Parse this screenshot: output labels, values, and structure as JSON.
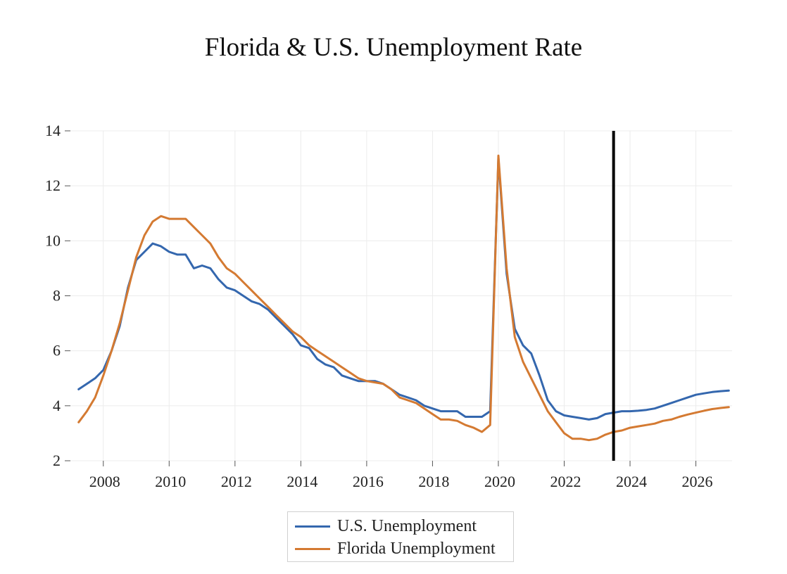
{
  "chart_data": {
    "type": "line",
    "title": "Florida & U.S. Unemployment Rate",
    "xlabel": "",
    "ylabel": "",
    "xlim": [
      2007.0,
      2027.1
    ],
    "ylim": [
      2,
      14
    ],
    "x_ticks": [
      2008,
      2010,
      2012,
      2014,
      2016,
      2018,
      2020,
      2022,
      2024,
      2026
    ],
    "y_ticks": [
      2,
      4,
      6,
      8,
      10,
      12,
      14
    ],
    "grid": true,
    "legend_position": "bottom-center",
    "vertical_marker": {
      "x": 2023.5,
      "color": "#000000"
    },
    "x": [
      2007.25,
      2007.5,
      2007.75,
      2008.0,
      2008.25,
      2008.5,
      2008.75,
      2009.0,
      2009.25,
      2009.5,
      2009.75,
      2010.0,
      2010.25,
      2010.5,
      2010.75,
      2011.0,
      2011.25,
      2011.5,
      2011.75,
      2012.0,
      2012.25,
      2012.5,
      2012.75,
      2013.0,
      2013.25,
      2013.5,
      2013.75,
      2014.0,
      2014.25,
      2014.5,
      2014.75,
      2015.0,
      2015.25,
      2015.5,
      2015.75,
      2016.0,
      2016.25,
      2016.5,
      2016.75,
      2017.0,
      2017.25,
      2017.5,
      2017.75,
      2018.0,
      2018.25,
      2018.5,
      2018.75,
      2019.0,
      2019.25,
      2019.5,
      2019.75,
      2020.0,
      2020.25,
      2020.5,
      2020.75,
      2021.0,
      2021.25,
      2021.5,
      2021.75,
      2022.0,
      2022.25,
      2022.5,
      2022.75,
      2023.0,
      2023.25,
      2023.5,
      2023.75,
      2024.0,
      2024.25,
      2024.5,
      2024.75,
      2025.0,
      2025.25,
      2025.5,
      2025.75,
      2026.0,
      2026.25,
      2026.5,
      2026.75,
      2027.0
    ],
    "series": [
      {
        "name": "U.S. Unemployment",
        "color": "#3467ae",
        "values": [
          4.6,
          4.8,
          5.0,
          5.3,
          6.0,
          6.9,
          8.3,
          9.3,
          9.6,
          9.9,
          9.8,
          9.6,
          9.5,
          9.5,
          9.0,
          9.1,
          9.0,
          8.6,
          8.3,
          8.2,
          8.0,
          7.8,
          7.7,
          7.5,
          7.2,
          6.9,
          6.6,
          6.2,
          6.1,
          5.7,
          5.5,
          5.4,
          5.1,
          5.0,
          4.9,
          4.9,
          4.9,
          4.8,
          4.6,
          4.4,
          4.3,
          4.2,
          4.0,
          3.9,
          3.8,
          3.8,
          3.8,
          3.6,
          3.6,
          3.6,
          3.8,
          13.0,
          8.8,
          6.8,
          6.2,
          5.9,
          5.1,
          4.2,
          3.8,
          3.65,
          3.6,
          3.55,
          3.5,
          3.55,
          3.7,
          3.75,
          3.8,
          3.8,
          3.82,
          3.85,
          3.9,
          4.0,
          4.1,
          4.2,
          4.3,
          4.4,
          4.45,
          4.5,
          4.53,
          4.55
        ]
      },
      {
        "name": "Florida Unemployment",
        "color": "#d47a32",
        "values": [
          3.4,
          3.8,
          4.3,
          5.1,
          6.0,
          7.0,
          8.2,
          9.4,
          10.2,
          10.7,
          10.9,
          10.8,
          10.8,
          10.8,
          10.5,
          10.2,
          9.9,
          9.4,
          9.0,
          8.8,
          8.5,
          8.2,
          7.9,
          7.6,
          7.3,
          7.0,
          6.7,
          6.5,
          6.2,
          6.0,
          5.8,
          5.6,
          5.4,
          5.2,
          5.0,
          4.9,
          4.85,
          4.8,
          4.6,
          4.3,
          4.2,
          4.1,
          3.9,
          3.7,
          3.5,
          3.5,
          3.45,
          3.3,
          3.2,
          3.05,
          3.3,
          13.1,
          9.0,
          6.5,
          5.6,
          5.0,
          4.4,
          3.8,
          3.4,
          3.0,
          2.8,
          2.8,
          2.75,
          2.8,
          2.95,
          3.05,
          3.1,
          3.2,
          3.25,
          3.3,
          3.35,
          3.45,
          3.5,
          3.6,
          3.68,
          3.75,
          3.82,
          3.88,
          3.92,
          3.95
        ]
      }
    ]
  }
}
